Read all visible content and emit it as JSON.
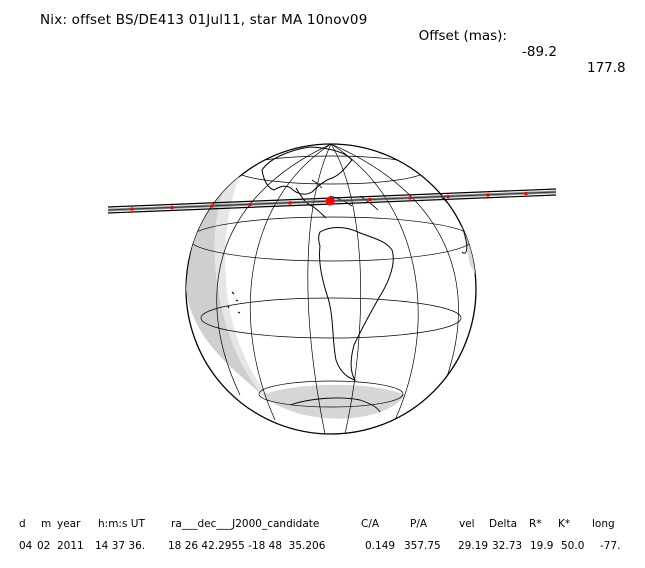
{
  "title": "Nix: offset BS/DE413 01Jul11, star MA 10nov09",
  "offset": {
    "label": "Offset (mas):",
    "ra": "-89.2",
    "dec": "177.8"
  },
  "colors": {
    "shadow": "#c8c8c8",
    "night": "#e6e6e6",
    "track": "#000000",
    "track_marks": "#ff0000",
    "center_point": "#ff0000"
  },
  "table": {
    "headers": [
      "d",
      "m",
      "year",
      "h:m:s UT",
      "ra___dec___J2000_candidate",
      "C/A",
      "P/A",
      "vel",
      "Delta",
      "R*",
      "K*",
      "long"
    ],
    "values": [
      "04",
      "02",
      "2011",
      "14 37 36.",
      "18 26 42.2955 -18 48  35.206",
      "0.149",
      "357.75",
      "29.19",
      "32.73",
      "19.9",
      "50.0",
      "-77."
    ]
  }
}
